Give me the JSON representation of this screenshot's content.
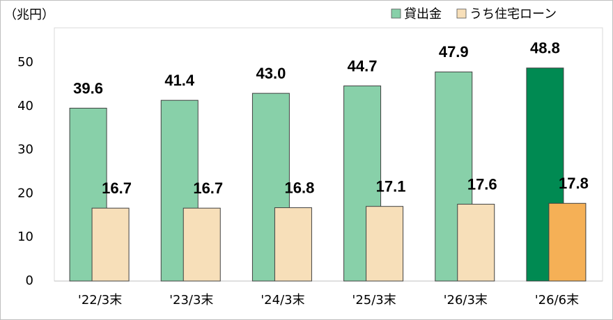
{
  "chart_data": {
    "type": "bar",
    "unit_label": "（兆円）",
    "categories": [
      "'22/3末",
      "'23/3末",
      "'24/3末",
      "'25/3末",
      "'26/3末",
      "'26/6末"
    ],
    "series": [
      {
        "name": "貸出金",
        "color": "#88d0a9",
        "colors": [
          "#88d0a9",
          "#88d0a9",
          "#88d0a9",
          "#88d0a9",
          "#88d0a9",
          "#008a52"
        ],
        "values": [
          39.6,
          41.4,
          43.0,
          44.7,
          47.9,
          48.8
        ],
        "value_labels": [
          "39.6",
          "41.4",
          "43.0",
          "44.7",
          "47.9",
          "48.8"
        ]
      },
      {
        "name": "うち住宅ローン",
        "color": "#f7dfb9",
        "colors": [
          "#f7dfb9",
          "#f7dfb9",
          "#f7dfb9",
          "#f7dfb9",
          "#f7dfb9",
          "#f5b056"
        ],
        "values": [
          16.7,
          16.7,
          16.8,
          17.1,
          17.6,
          17.8
        ],
        "value_labels": [
          "16.7",
          "16.7",
          "16.8",
          "17.1",
          "17.6",
          "17.8"
        ]
      }
    ],
    "ylim": [
      0,
      58
    ],
    "yticks": [
      0,
      10,
      20,
      30,
      40,
      50
    ],
    "grid": false,
    "legend": "top-right"
  }
}
